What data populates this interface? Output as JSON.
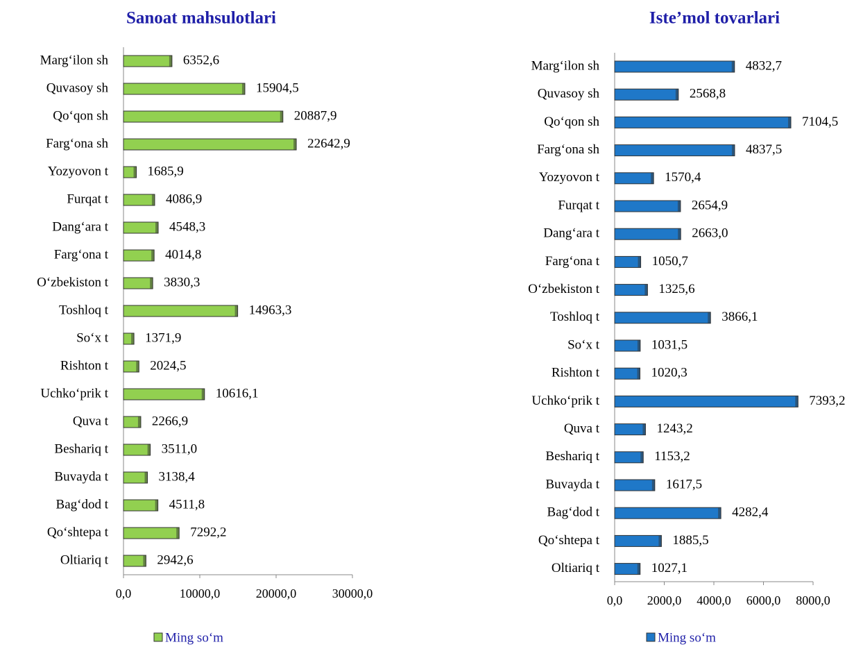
{
  "chart_data": [
    {
      "type": "bar",
      "orientation": "horizontal",
      "title": "Sanoat mahsulotlari",
      "categories": [
        "Marg‘ilon sh",
        "Quvasoy sh",
        "Qo‘qon sh",
        "Farg‘ona sh",
        "Yozyovon t",
        "Furqat t",
        "Dang‘ara t",
        "Farg‘ona t",
        "O‘zbekiston t",
        "Toshloq t",
        "So‘x t",
        "Rishton t",
        "Uchko‘prik t",
        "Quva t",
        "Beshariq t",
        "Buvayda t",
        "Bag‘dod t",
        "Qo‘shtepa t",
        "Oltiariq t"
      ],
      "series": [
        {
          "name": "Ming so‘m",
          "color": "#92d050",
          "values": [
            6352.6,
            15904.5,
            20887.9,
            22642.9,
            1685.9,
            4086.9,
            4548.3,
            4014.8,
            3830.3,
            14963.3,
            1371.9,
            2024.5,
            10616.1,
            2266.9,
            3511.0,
            3138.4,
            4511.8,
            7292.2,
            2942.6
          ],
          "value_labels": [
            "6352,6",
            "15904,5",
            "20887,9",
            "22642,9",
            "1685,9",
            "4086,9",
            "4548,3",
            "4014,8",
            "3830,3",
            "14963,3",
            "1371,9",
            "2024,5",
            "10616,1",
            "2266,9",
            "3511,0",
            "3138,4",
            "4511,8",
            "7292,2",
            "2942,6"
          ]
        }
      ],
      "xlim": [
        0,
        30000
      ],
      "xticks": [
        {
          "value": 0,
          "label": "0,0"
        },
        {
          "value": 10000,
          "label": "10000,0"
        },
        {
          "value": 20000,
          "label": "20000,0"
        },
        {
          "value": 30000,
          "label": "30000,0"
        }
      ],
      "legend": "bottom"
    },
    {
      "type": "bar",
      "orientation": "horizontal",
      "title": "Iste’mol tovarlari",
      "categories": [
        "Marg‘ilon sh",
        "Quvasoy sh",
        "Qo‘qon sh",
        "Farg‘ona sh",
        "Yozyovon t",
        "Furqat t",
        "Dang‘ara t",
        "Farg‘ona t",
        "O‘zbekiston t",
        "Toshloq t",
        "So‘x t",
        "Rishton t",
        "Uchko‘prik t",
        "Quva t",
        "Beshariq t",
        "Buvayda t",
        "Bag‘dod t",
        "Qo‘shtepa t",
        "Oltiariq t"
      ],
      "series": [
        {
          "name": "Ming so‘m",
          "color": "#1f78c8",
          "values": [
            4832.7,
            2568.8,
            7104.5,
            4837.5,
            1570.4,
            2654.9,
            2663.0,
            1050.7,
            1325.6,
            3866.1,
            1031.5,
            1020.3,
            7393.2,
            1243.2,
            1153.2,
            1617.5,
            4282.4,
            1885.5,
            1027.1
          ],
          "value_labels": [
            "4832,7",
            "2568,8",
            "7104,5",
            "4837,5",
            "1570,4",
            "2654,9",
            "2663,0",
            "1050,7",
            "1325,6",
            "3866,1",
            "1031,5",
            "1020,3",
            "7393,2",
            "1243,2",
            "1153,2",
            "1617,5",
            "4282,4",
            "1885,5",
            "1027,1"
          ]
        }
      ],
      "xlim": [
        0,
        8000
      ],
      "xticks": [
        {
          "value": 0,
          "label": "0,0"
        },
        {
          "value": 2000,
          "label": "2000,0"
        },
        {
          "value": 4000,
          "label": "4000,0"
        },
        {
          "value": 6000,
          "label": "6000,0"
        },
        {
          "value": 8000,
          "label": "8000,0"
        }
      ],
      "legend": "bottom"
    }
  ]
}
